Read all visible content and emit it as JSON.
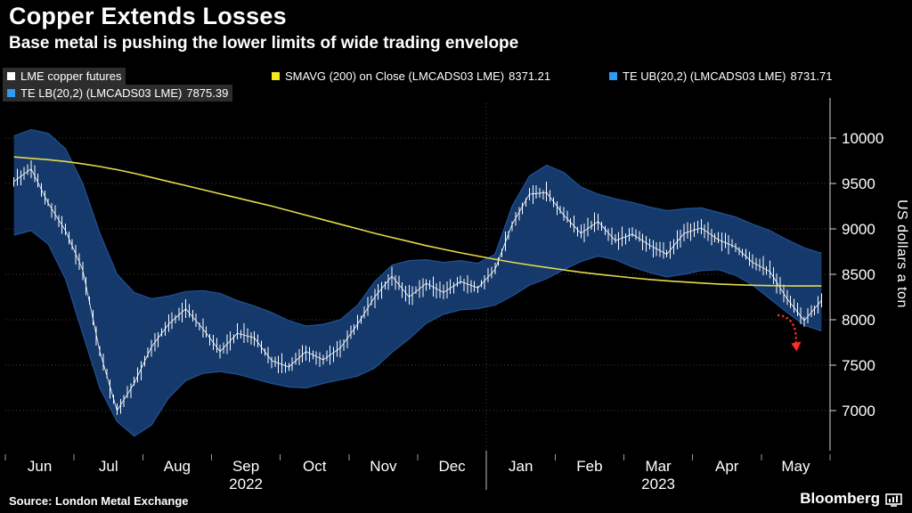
{
  "header": {
    "title": "Copper Extends Losses",
    "subtitle": "Base metal is pushing the lower limits of wide trading envelope"
  },
  "legend": {
    "items": [
      {
        "label": "LME copper futures",
        "value": "",
        "color": "#ffffff",
        "boxed": true
      },
      {
        "label": "SMAVG (200)  on Close (LMCADS03 LME)",
        "value": "8371.21",
        "color": "#f8e71c",
        "boxed": false
      },
      {
        "label": "TE UB(20,2) (LMCADS03 LME)",
        "value": "8731.71",
        "color": "#2e9bf7",
        "boxed": false
      },
      {
        "label": "TE LB(20,2) (LMCADS03 LME)",
        "value": "7875.39",
        "color": "#2e9bf7",
        "boxed": true
      }
    ]
  },
  "chart_data": {
    "type": "line",
    "title": "Copper Extends Losses",
    "subtitle": "Base metal is pushing the lower limits of wide trading envelope",
    "xlabel": "",
    "ylabel": "US dollars a ton",
    "ylim": [
      6560,
      10380
    ],
    "y_ticks": [
      7000,
      7500,
      8000,
      8500,
      9000,
      9500,
      10000
    ],
    "grid": "dotted horizontal",
    "legend_position": "top",
    "months": [
      "Jun",
      "Jul",
      "Aug",
      "Sep",
      "Oct",
      "Nov",
      "Dec",
      "Jan",
      "Feb",
      "Mar",
      "Apr",
      "May"
    ],
    "years": [
      {
        "label": "2022",
        "from_month": 0,
        "to_month": 7
      },
      {
        "label": "2023",
        "from_month": 7,
        "to_month": 12
      }
    ],
    "x_unit": "months since 2022-06-01, 4 samples per month",
    "x_start": 0.125,
    "x_step": 0.25,
    "band_fill": "#15396b",
    "band_edge": "#1f5296",
    "series": [
      {
        "name": "LME copper futures",
        "role": "price",
        "color": "#ffffff",
        "values": [
          9520,
          9660,
          9280,
          8980,
          8550,
          7650,
          7000,
          7300,
          7700,
          7950,
          8120,
          7900,
          7650,
          7850,
          7800,
          7550,
          7480,
          7650,
          7560,
          7690,
          7950,
          8250,
          8480,
          8250,
          8400,
          8300,
          8420,
          8350,
          8550,
          9050,
          9380,
          9400,
          9150,
          8950,
          9080,
          8870,
          8940,
          8820,
          8720,
          8950,
          9010,
          8880,
          8800,
          8630,
          8530,
          8230,
          7990,
          8210
        ]
      },
      {
        "name": "SMAVG (200) on Close (LMCADS03 LME)",
        "role": "sma",
        "color": "#e3da4d",
        "last_value": 8371.21,
        "values": [
          9790,
          9775,
          9760,
          9740,
          9715,
          9685,
          9650,
          9610,
          9565,
          9520,
          9475,
          9430,
          9385,
          9340,
          9295,
          9250,
          9200,
          9150,
          9100,
          9050,
          9000,
          8950,
          8905,
          8860,
          8815,
          8775,
          8735,
          8700,
          8665,
          8632,
          8602,
          8575,
          8548,
          8522,
          8500,
          8480,
          8460,
          8443,
          8428,
          8415,
          8403,
          8393,
          8385,
          8379,
          8375,
          8372,
          8371,
          8371
        ]
      },
      {
        "name": "TE UB(20,2) (LMCADS03 LME)",
        "role": "upper",
        "color": "#2e9bf7",
        "last_value": 8731.71,
        "values": [
          10020,
          10090,
          10050,
          9880,
          9500,
          8950,
          8500,
          8300,
          8230,
          8260,
          8310,
          8320,
          8290,
          8210,
          8150,
          8080,
          7990,
          7930,
          7950,
          8000,
          8160,
          8420,
          8600,
          8650,
          8660,
          8630,
          8650,
          8620,
          8720,
          9250,
          9580,
          9700,
          9620,
          9460,
          9380,
          9330,
          9290,
          9240,
          9200,
          9220,
          9230,
          9180,
          9130,
          9050,
          8980,
          8880,
          8790,
          8732
        ]
      },
      {
        "name": "TE LB(20,2) (LMCADS03 LME)",
        "role": "lower",
        "color": "#2e9bf7",
        "last_value": 7875.39,
        "values": [
          8930,
          8980,
          8830,
          8450,
          7850,
          7250,
          6880,
          6720,
          6840,
          7140,
          7330,
          7410,
          7430,
          7400,
          7350,
          7300,
          7260,
          7250,
          7300,
          7340,
          7380,
          7470,
          7640,
          7790,
          7960,
          8060,
          8110,
          8120,
          8160,
          8260,
          8380,
          8450,
          8550,
          8640,
          8700,
          8660,
          8580,
          8520,
          8470,
          8500,
          8540,
          8550,
          8490,
          8380,
          8230,
          8080,
          7940,
          7875
        ]
      }
    ],
    "annotation": {
      "type": "arrow",
      "color": "#ff2b2b",
      "x_month": 11.25,
      "from_value": 8050,
      "to_value": 7720
    }
  },
  "footer": {
    "source": "Source: London Metal Exchange",
    "brand": "Bloomberg"
  }
}
